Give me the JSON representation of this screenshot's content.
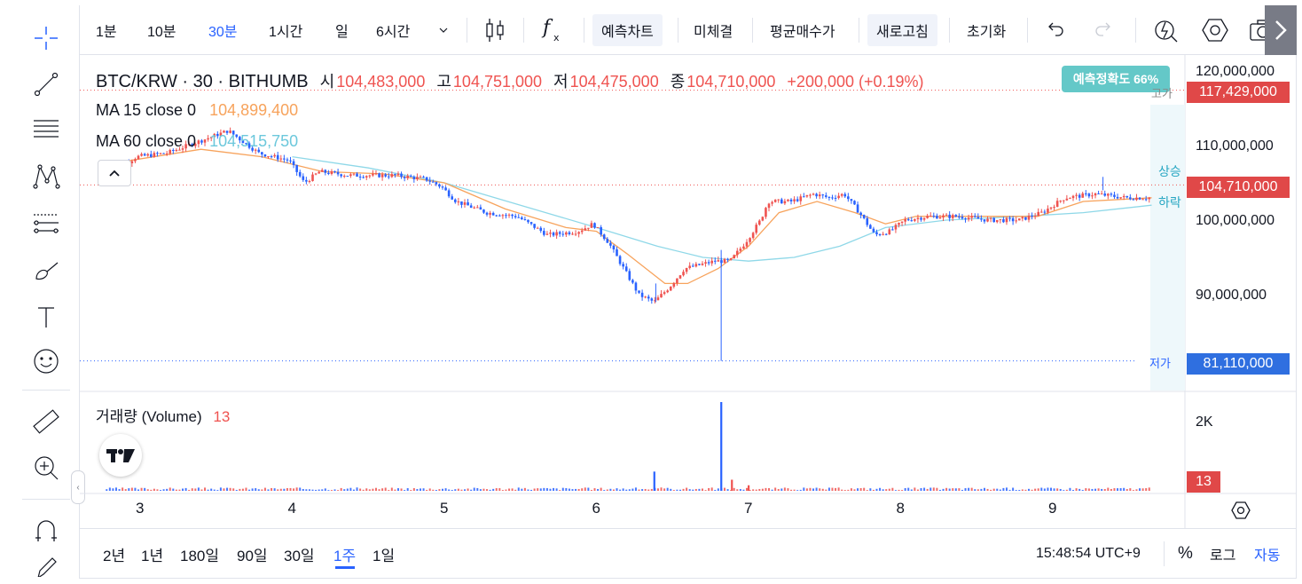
{
  "toolbar": {
    "intervals": [
      {
        "label": "1분",
        "active": false
      },
      {
        "label": "10분",
        "active": false
      },
      {
        "label": "30분",
        "active": true
      },
      {
        "label": "1시간",
        "active": false
      },
      {
        "label": "일",
        "active": false
      },
      {
        "label": "6시간",
        "active": false
      }
    ],
    "buttons": {
      "forecast": "예측차트",
      "unfilled": "미체결",
      "avg_price": "평균매수가",
      "refresh": "새로고침",
      "reset": "초기화"
    },
    "icons": [
      "chevron-down-icon",
      "candle-type-icon",
      "indicator-fx-icon",
      "undo-icon",
      "redo-icon",
      "alert-icon",
      "settings-hexagon-icon",
      "camera-icon",
      "next-arrow-icon"
    ]
  },
  "left_tools": [
    "crosshair-icon",
    "trendline-icon",
    "horizontal-lines-icon",
    "pattern-icon",
    "fib-icon",
    "brush-icon",
    "text-icon",
    "emoji-icon",
    "ruler-icon",
    "zoom-in-icon",
    "magnet-icon",
    "pencil-icon"
  ],
  "symbol": {
    "title": "BTC/KRW · 30 · BITHUMB",
    "open_label": "시",
    "open": "104,483,000",
    "high_label": "고",
    "high": "104,751,000",
    "low_label": "저",
    "low": "104,475,000",
    "close_label": "종",
    "close": "104,710,000",
    "change": "+200,000 (+0.19%)"
  },
  "ma15": {
    "label": "MA 15 close 0",
    "value": "104,899,400"
  },
  "ma60": {
    "label": "MA 60 close 0",
    "value": "104,515,750"
  },
  "forecast": {
    "accuracy": "예측정확도 66%",
    "up": "상승",
    "down": "하락"
  },
  "markers": {
    "high_label": "고가",
    "low_label": "저가"
  },
  "price_tags": {
    "high": "117,429,000",
    "current": "104,710,000",
    "low": "81,110,000",
    "volume": "13"
  },
  "volume": {
    "label": "거래량 (Volume)",
    "value": "13",
    "axis_label": "2K"
  },
  "bottom": {
    "ranges": [
      {
        "label": "2년",
        "active": false
      },
      {
        "label": "1년",
        "active": false
      },
      {
        "label": "180일",
        "active": false
      },
      {
        "label": "90일",
        "active": false
      },
      {
        "label": "30일",
        "active": false
      },
      {
        "label": "1주",
        "active": true
      },
      {
        "label": "1일",
        "active": false
      }
    ],
    "clock": "15:48:54 UTC+9",
    "percent": "%",
    "log": "로그",
    "auto": "자동"
  },
  "colors": {
    "up": "#ef5350",
    "down": "#2962ff",
    "ma15": "#f7a35c",
    "ma60": "#8fd8e8",
    "accent": "#2962ff",
    "forecast": "#64c8c8"
  },
  "chart_data": {
    "type": "candlestick",
    "symbol": "BTC/KRW",
    "interval": "30",
    "x_ticks": [
      "3",
      "4",
      "5",
      "6",
      "7",
      "8",
      "9"
    ],
    "y_ticks": [
      "120,000,000",
      "110,000,000",
      "100,000,000",
      "90,000,000"
    ],
    "ylim": [
      78000000,
      122000000
    ],
    "volume_ticks": [
      "2K"
    ],
    "last": {
      "open": 104483000,
      "high": 104751000,
      "low": 104475000,
      "close": 104710000
    },
    "period_high": 117429000,
    "period_low": 81110000,
    "price_path": [
      [
        2.78,
        106000000
      ],
      [
        3.0,
        108500000
      ],
      [
        3.2,
        109000000
      ],
      [
        3.4,
        110500000
      ],
      [
        3.6,
        112000000
      ],
      [
        3.8,
        109000000
      ],
      [
        4.0,
        108000000
      ],
      [
        4.1,
        105000000
      ],
      [
        4.2,
        106500000
      ],
      [
        4.4,
        106000000
      ],
      [
        4.7,
        106000000
      ],
      [
        4.9,
        105500000
      ],
      [
        5.0,
        104500000
      ],
      [
        5.1,
        102500000
      ],
      [
        5.3,
        101000000
      ],
      [
        5.5,
        100500000
      ],
      [
        5.7,
        98000000
      ],
      [
        5.9,
        98500000
      ],
      [
        6.0,
        99500000
      ],
      [
        6.1,
        97000000
      ],
      [
        6.2,
        93500000
      ],
      [
        6.3,
        90000000
      ],
      [
        6.4,
        89000000
      ],
      [
        6.5,
        91000000
      ],
      [
        6.6,
        93500000
      ],
      [
        6.8,
        94500000
      ],
      [
        6.9,
        94500000
      ],
      [
        7.0,
        97000000
      ],
      [
        7.1,
        100000000
      ],
      [
        7.15,
        102500000
      ],
      [
        7.3,
        102500000
      ],
      [
        7.45,
        103500000
      ],
      [
        7.55,
        103000000
      ],
      [
        7.65,
        103500000
      ],
      [
        7.75,
        101000000
      ],
      [
        7.85,
        98000000
      ],
      [
        7.95,
        98500000
      ],
      [
        8.05,
        100000000
      ],
      [
        8.2,
        100500000
      ],
      [
        8.4,
        100500000
      ],
      [
        8.6,
        100000000
      ],
      [
        8.8,
        100000000
      ],
      [
        8.95,
        101000000
      ],
      [
        9.1,
        103000000
      ],
      [
        9.3,
        103500000
      ],
      [
        9.5,
        103000000
      ],
      [
        9.65,
        103000000
      ]
    ],
    "ma15_path": [
      [
        2.78,
        107500000
      ],
      [
        3.4,
        109500000
      ],
      [
        3.8,
        108500000
      ],
      [
        4.2,
        106500000
      ],
      [
        4.6,
        106200000
      ],
      [
        5.0,
        105000000
      ],
      [
        5.4,
        101500000
      ],
      [
        5.8,
        99000000
      ],
      [
        6.0,
        98500000
      ],
      [
        6.2,
        95500000
      ],
      [
        6.45,
        91500000
      ],
      [
        6.6,
        91500000
      ],
      [
        6.8,
        93500000
      ],
      [
        7.0,
        96500000
      ],
      [
        7.2,
        101000000
      ],
      [
        7.45,
        102500000
      ],
      [
        7.7,
        101000000
      ],
      [
        7.9,
        99500000
      ],
      [
        8.1,
        100500000
      ],
      [
        8.5,
        100500000
      ],
      [
        8.9,
        100500000
      ],
      [
        9.2,
        102500000
      ],
      [
        9.65,
        103000000
      ]
    ],
    "ma60_path": [
      [
        4.0,
        108500000
      ],
      [
        4.5,
        107000000
      ],
      [
        5.0,
        105000000
      ],
      [
        5.5,
        102000000
      ],
      [
        6.0,
        99000000
      ],
      [
        6.4,
        96500000
      ],
      [
        6.7,
        95000000
      ],
      [
        7.0,
        94500000
      ],
      [
        7.3,
        95000000
      ],
      [
        7.6,
        96500000
      ],
      [
        7.9,
        99000000
      ],
      [
        8.3,
        100000000
      ],
      [
        8.8,
        100500000
      ],
      [
        9.2,
        101000000
      ],
      [
        9.65,
        102000000
      ]
    ],
    "volume_spikes": [
      [
        6.38,
        520
      ],
      [
        6.82,
        2400
      ],
      [
        6.89,
        300
      ],
      [
        7.0,
        150
      ]
    ],
    "volume_base": 50
  }
}
